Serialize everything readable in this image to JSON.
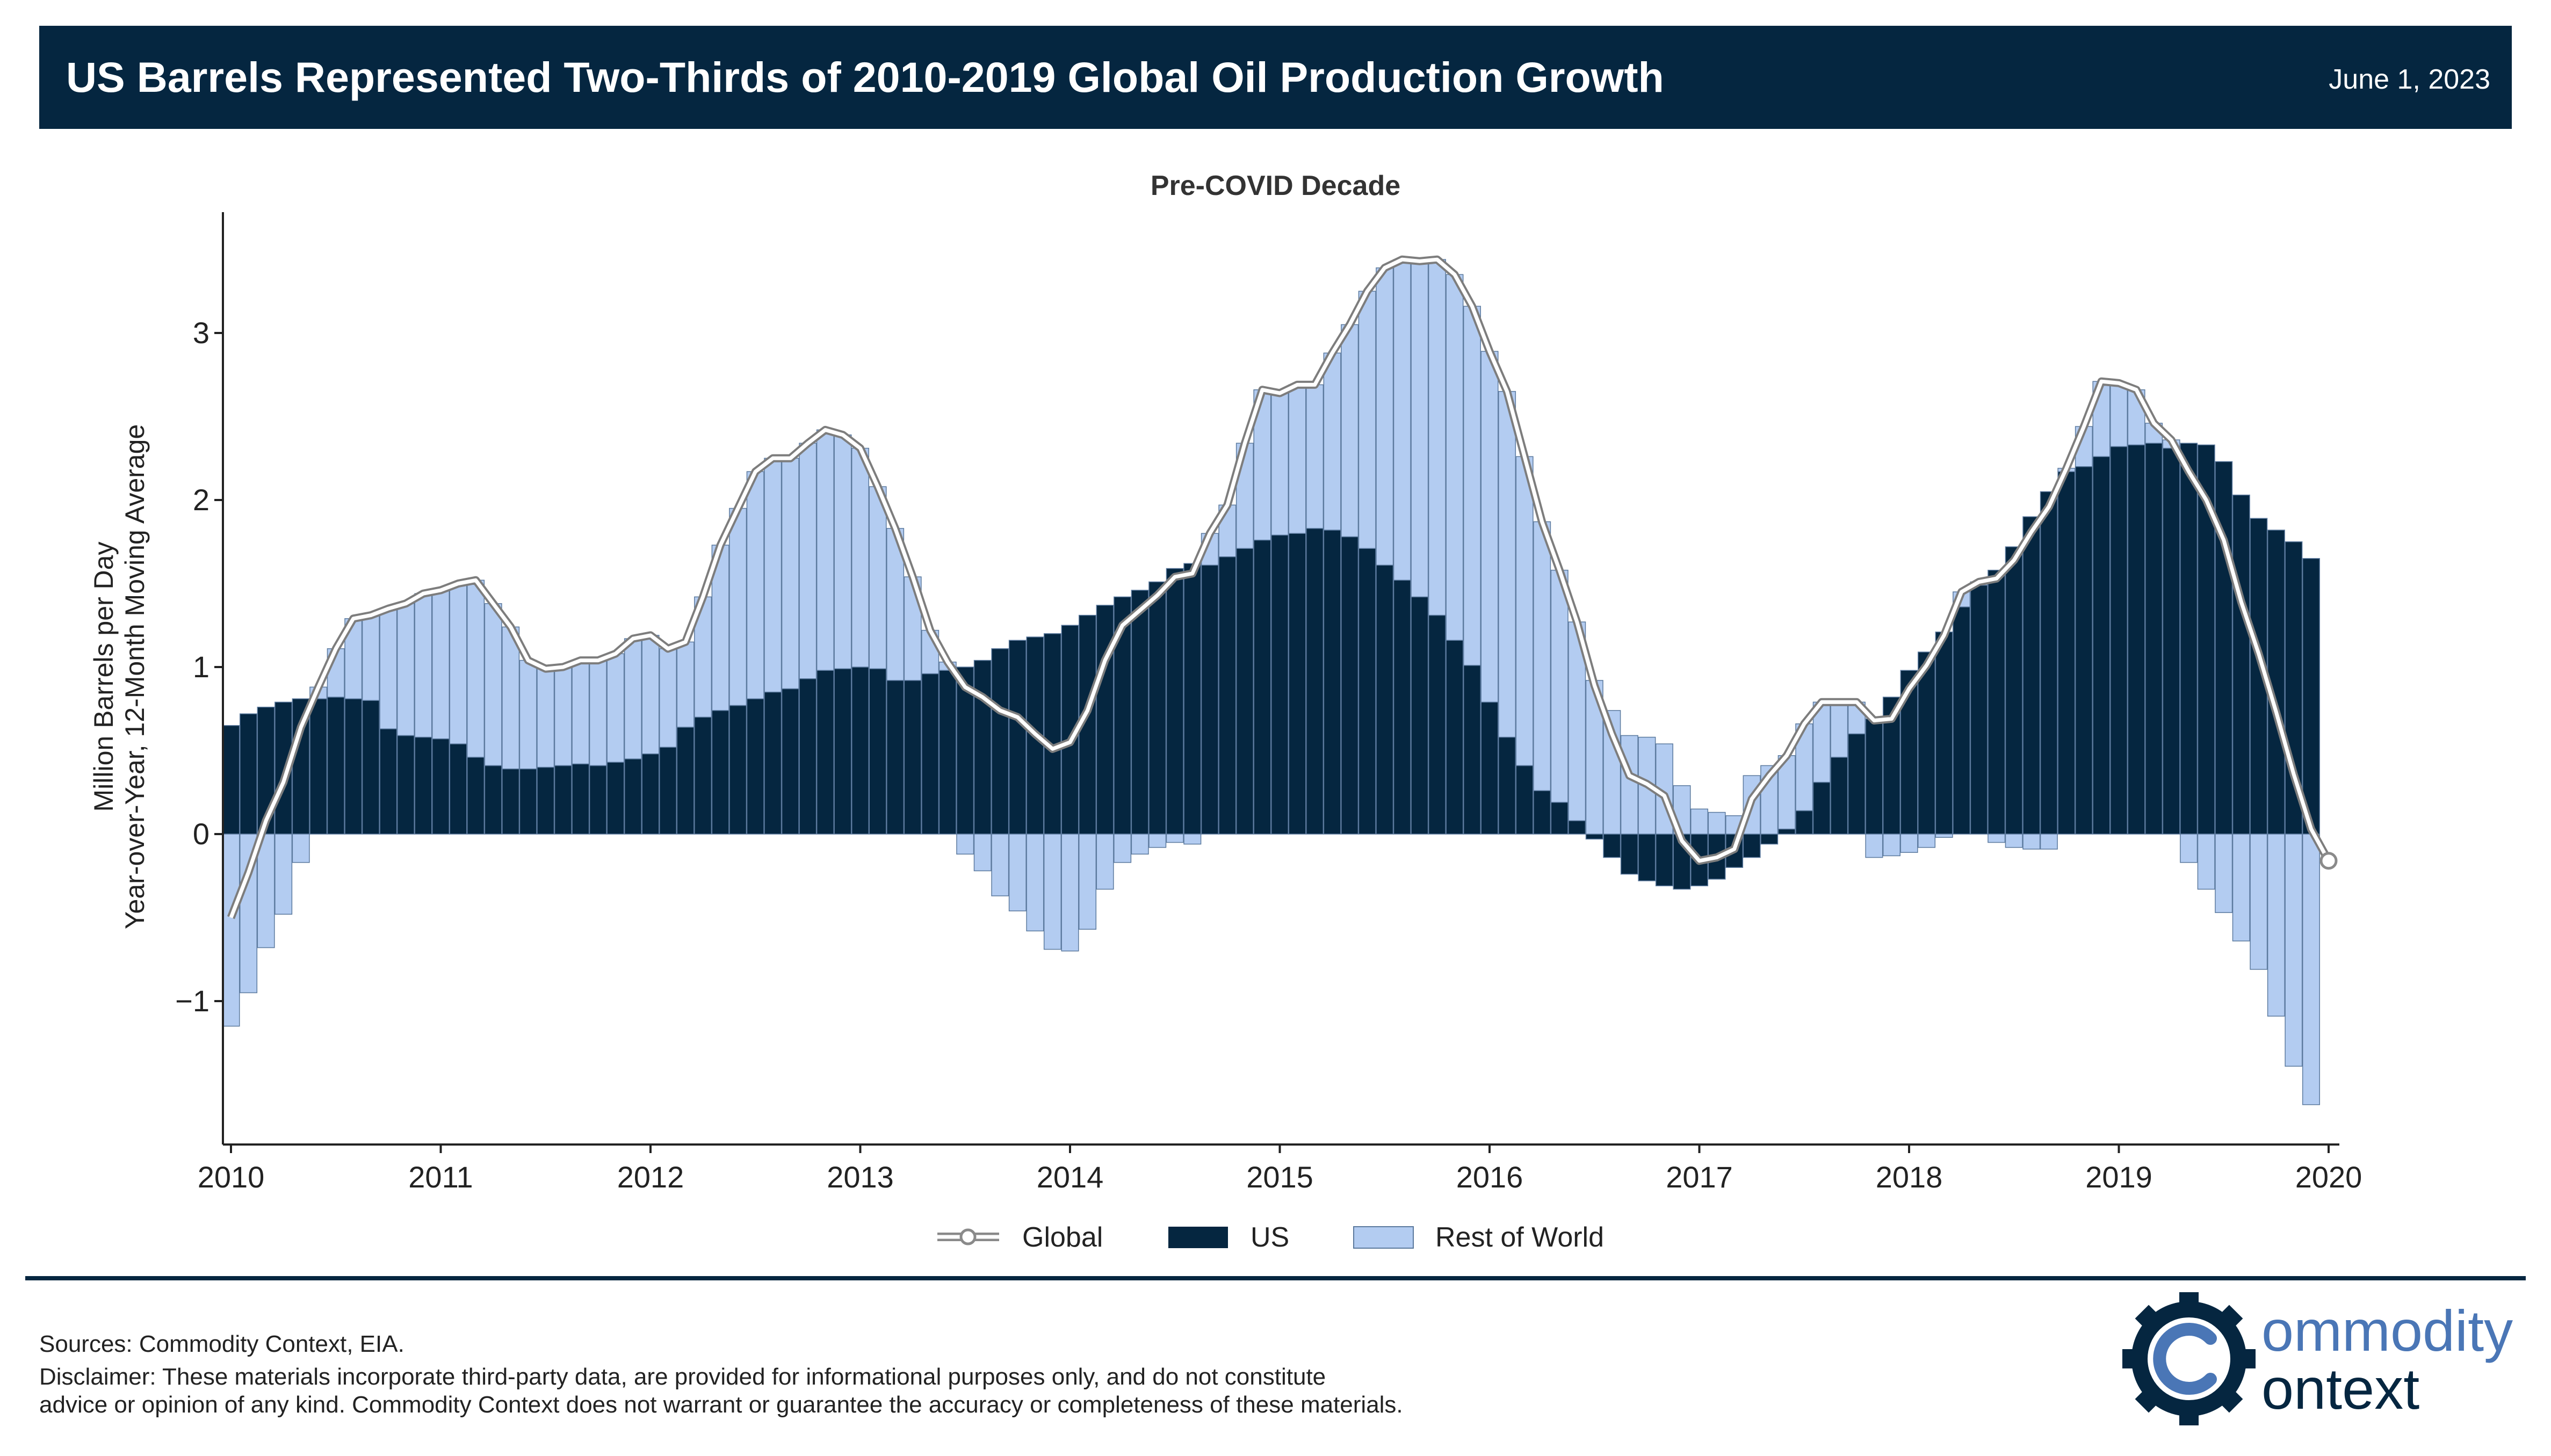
{
  "header": {
    "title": "US Barrels Represented Two-Thirds of 2010-2019 Global Oil Production Growth",
    "date": "June 1, 2023"
  },
  "chart_data": {
    "type": "bar",
    "title": "Pre-COVID Decade",
    "ylabel": "Million Barrels per Day\nYear-over-Year, 12-Month Moving Average",
    "xlabel": "",
    "ylim": [
      -1.9,
      3.55
    ],
    "xlim": [
      2010.0,
      2020.1
    ],
    "y_ticks": [
      "3",
      "2",
      "1",
      "0",
      "−1"
    ],
    "x_ticks": [
      "2010",
      "2011",
      "2012",
      "2013",
      "2014",
      "2015",
      "2016",
      "2017",
      "2018",
      "2019",
      "2020"
    ],
    "grid": false,
    "legend_position": "bottom-center",
    "colors": {
      "US": "#052640",
      "Rest of World": "#b3ccf1",
      "Global": "#a6a6a6"
    },
    "start": "2010-01",
    "frequency": "monthly",
    "series": [
      {
        "name": "US",
        "values": [
          0.65,
          0.72,
          0.76,
          0.79,
          0.81,
          0.81,
          0.82,
          0.81,
          0.8,
          0.63,
          0.59,
          0.58,
          0.57,
          0.54,
          0.46,
          0.41,
          0.39,
          0.39,
          0.4,
          0.41,
          0.42,
          0.41,
          0.43,
          0.45,
          0.48,
          0.52,
          0.64,
          0.7,
          0.74,
          0.77,
          0.81,
          0.85,
          0.87,
          0.93,
          0.98,
          0.99,
          1.0,
          0.99,
          0.92,
          0.92,
          0.96,
          0.98,
          1.0,
          1.04,
          1.11,
          1.16,
          1.18,
          1.2,
          1.25,
          1.31,
          1.37,
          1.42,
          1.46,
          1.51,
          1.59,
          1.62,
          1.61,
          1.66,
          1.71,
          1.76,
          1.79,
          1.8,
          1.83,
          1.82,
          1.78,
          1.71,
          1.61,
          1.52,
          1.42,
          1.31,
          1.16,
          1.01,
          0.79,
          0.58,
          0.41,
          0.26,
          0.19,
          0.08,
          -0.03,
          -0.14,
          -0.24,
          -0.28,
          -0.31,
          -0.33,
          -0.31,
          -0.27,
          -0.2,
          -0.14,
          -0.06,
          0.03,
          0.14,
          0.31,
          0.46,
          0.6,
          0.69,
          0.82,
          0.98,
          1.09,
          1.21,
          1.36,
          1.49,
          1.58,
          1.72,
          1.9,
          2.05,
          2.17,
          2.2,
          2.26,
          2.32,
          2.33,
          2.34,
          2.31,
          2.34,
          2.33,
          2.23,
          2.03,
          1.89,
          1.82,
          1.75,
          1.65
        ]
      },
      {
        "name": "Rest of World",
        "values": [
          -1.15,
          -0.95,
          -0.68,
          -0.48,
          -0.17,
          0.07,
          0.29,
          0.48,
          0.51,
          0.72,
          0.79,
          0.86,
          0.89,
          0.96,
          1.06,
          0.97,
          0.85,
          0.65,
          0.6,
          0.59,
          0.62,
          0.63,
          0.65,
          0.72,
          0.71,
          0.59,
          0.51,
          0.72,
          0.99,
          1.18,
          1.36,
          1.4,
          1.38,
          1.41,
          1.44,
          1.4,
          1.31,
          1.09,
          0.91,
          0.62,
          0.26,
          0.05,
          -0.12,
          -0.22,
          -0.37,
          -0.46,
          -0.58,
          -0.69,
          -0.7,
          -0.57,
          -0.33,
          -0.17,
          -0.12,
          -0.08,
          -0.05,
          -0.06,
          0.19,
          0.31,
          0.63,
          0.9,
          0.85,
          0.89,
          0.86,
          1.06,
          1.27,
          1.54,
          1.78,
          1.92,
          2.01,
          2.13,
          2.19,
          2.15,
          2.1,
          2.07,
          1.85,
          1.61,
          1.39,
          1.19,
          0.92,
          0.74,
          0.59,
          0.58,
          0.54,
          0.29,
          0.15,
          0.13,
          0.11,
          0.35,
          0.41,
          0.44,
          0.52,
          0.48,
          0.33,
          0.19,
          -0.14,
          -0.13,
          -0.11,
          -0.08,
          -0.02,
          0.09,
          0.02,
          -0.05,
          -0.08,
          -0.09,
          -0.09,
          0.02,
          0.24,
          0.45,
          0.38,
          0.33,
          0.12,
          0.05,
          -0.17,
          -0.33,
          -0.47,
          -0.64,
          -0.81,
          -1.09,
          -1.39,
          -1.62,
          -1.81
        ]
      }
    ],
    "global_line": {
      "name": "Global",
      "values": [
        -0.5,
        -0.23,
        0.08,
        0.31,
        0.64,
        0.88,
        1.11,
        1.29,
        1.31,
        1.35,
        1.38,
        1.44,
        1.46,
        1.5,
        1.52,
        1.38,
        1.24,
        1.04,
        0.99,
        1.0,
        1.04,
        1.04,
        1.08,
        1.17,
        1.19,
        1.11,
        1.15,
        1.42,
        1.73,
        1.95,
        2.17,
        2.25,
        2.25,
        2.34,
        2.42,
        2.39,
        2.31,
        2.08,
        1.83,
        1.54,
        1.22,
        1.03,
        0.88,
        0.82,
        0.74,
        0.7,
        0.6,
        0.51,
        0.55,
        0.74,
        1.04,
        1.25,
        1.34,
        1.43,
        1.54,
        1.56,
        1.8,
        1.97,
        2.34,
        2.66,
        2.64,
        2.69,
        2.69,
        2.88,
        3.05,
        3.25,
        3.39,
        3.44,
        3.43,
        3.44,
        3.35,
        3.16,
        2.89,
        2.65,
        2.26,
        1.87,
        1.58,
        1.27,
        0.89,
        0.6,
        0.35,
        0.3,
        0.23,
        -0.04,
        -0.16,
        -0.14,
        -0.09,
        0.21,
        0.35,
        0.47,
        0.66,
        0.79,
        0.79,
        0.79,
        0.68,
        0.69,
        0.87,
        1.01,
        1.19,
        1.45,
        1.51,
        1.53,
        1.64,
        1.81,
        1.96,
        2.19,
        2.44,
        2.71,
        2.7,
        2.66,
        2.46,
        2.36,
        2.17,
        2.0,
        1.76,
        1.39,
        1.08,
        0.73,
        0.36,
        0.03,
        -0.16
      ]
    }
  },
  "legend": {
    "global": "Global",
    "us": "US",
    "row": "Rest of World"
  },
  "footer": {
    "sources": "Sources: Commodity Context, EIA.",
    "disclaimer_line1": "Disclaimer: These materials incorporate third-party data, are provided for informational purposes only, and do not constitute",
    "disclaimer_line2": "advice or opinion of any kind. Commodity Context does not warrant or guarantee the accuracy or completeness of these materials."
  },
  "logo": {
    "word1": "ommodity",
    "word2": "ontext"
  }
}
